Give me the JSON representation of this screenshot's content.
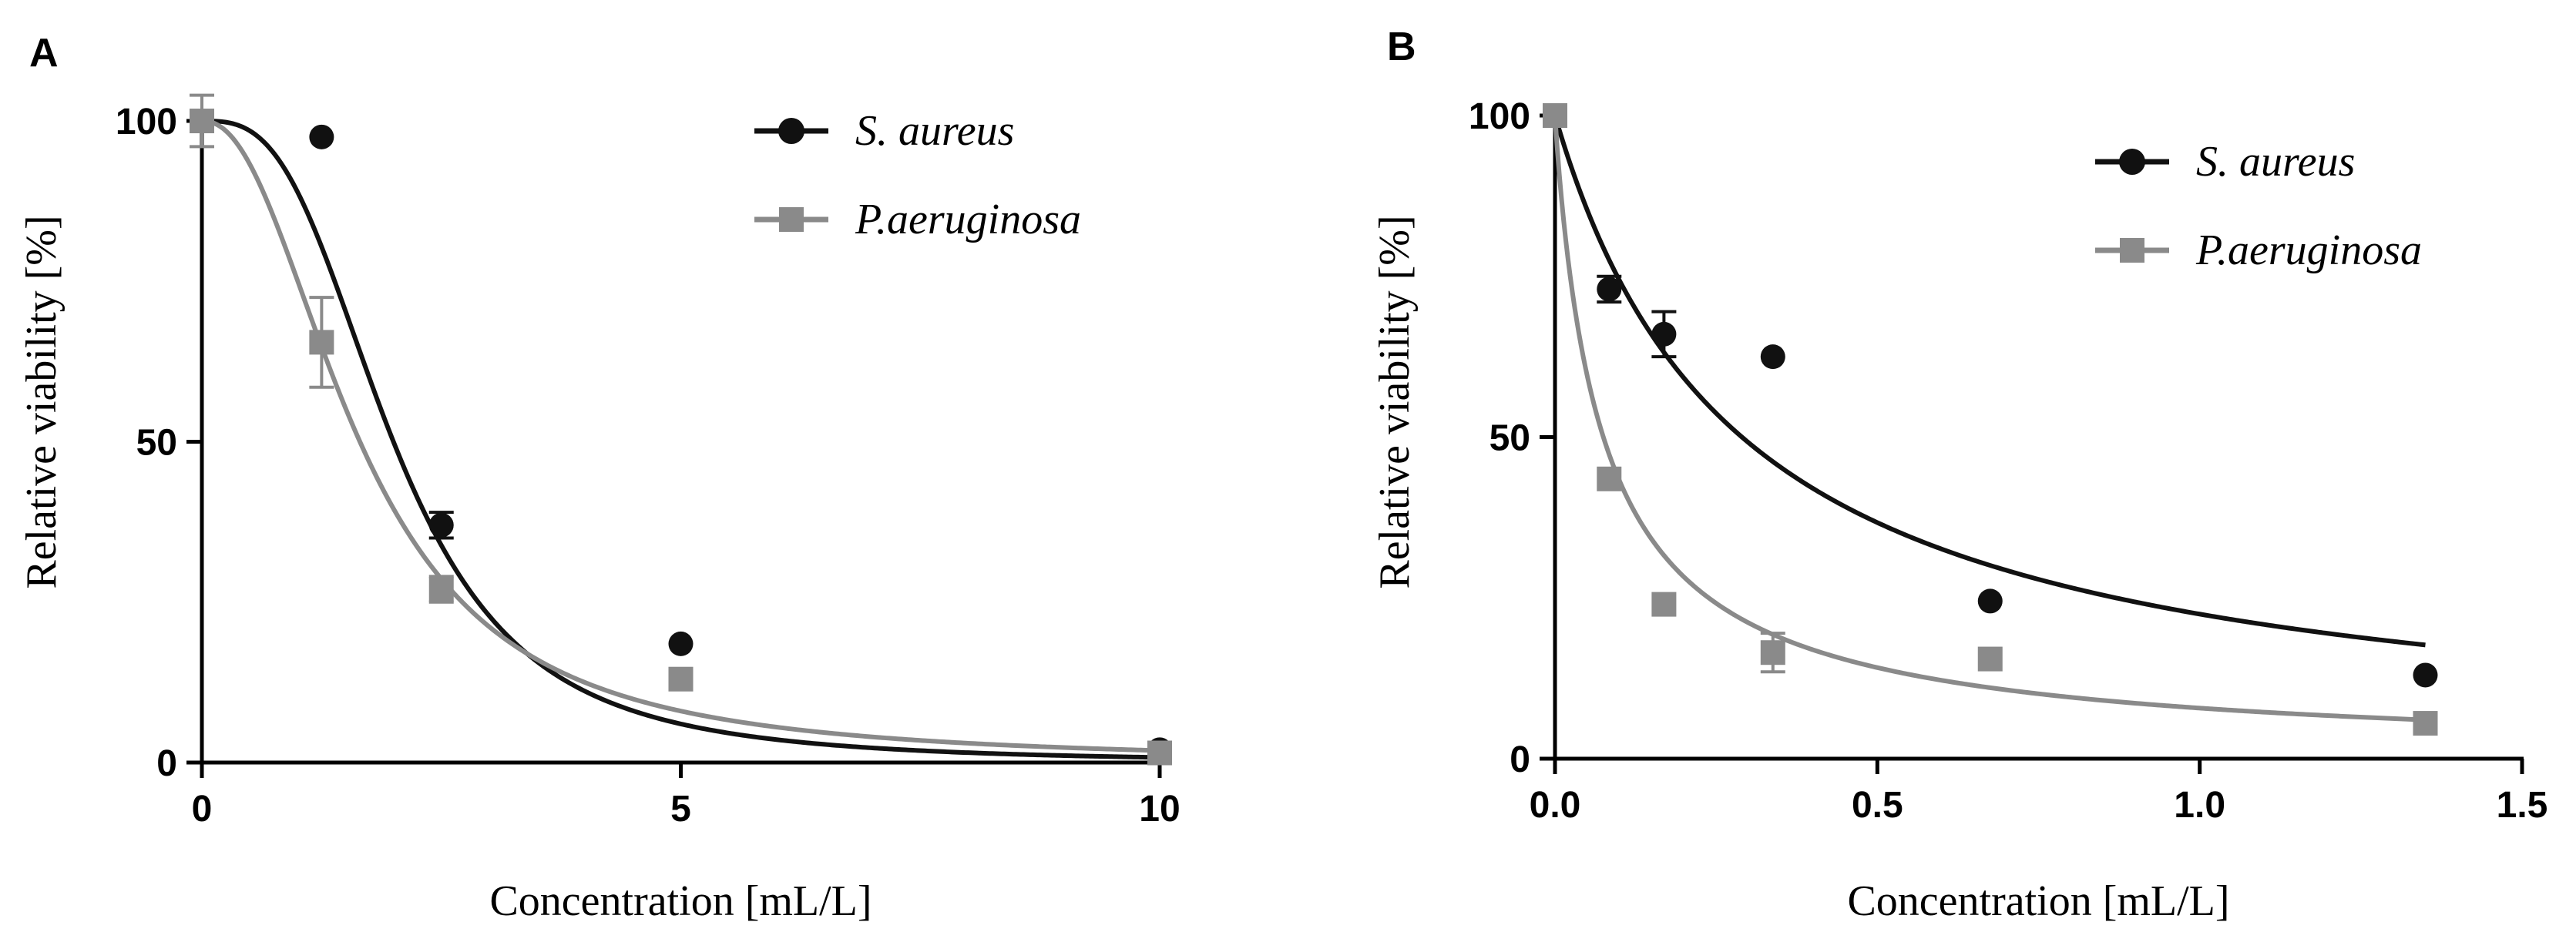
{
  "figure": {
    "panel_a_label": "A",
    "panel_b_label": "B"
  },
  "colors": {
    "s_aureus": "#111111",
    "p_aeruginosa": "#8a8a8a",
    "axis": "#000000"
  },
  "chart_data": [
    {
      "panel": "A",
      "type": "scatter",
      "title": "",
      "xlabel": "Concentration [mL/L]",
      "ylabel": "Relative viability [%]",
      "xlim": [
        0,
        10
      ],
      "ylim": [
        0,
        100
      ],
      "xticks": [
        0,
        5,
        10
      ],
      "xtick_labels": [
        "0",
        "5",
        "10"
      ],
      "yticks": [
        0,
        50,
        100
      ],
      "ytick_labels": [
        "0",
        "50",
        "100"
      ],
      "grid": false,
      "legend_position": "top-right",
      "series": [
        {
          "name": "S. aureus",
          "marker": "circle",
          "color": "#111111",
          "x": [
            0,
            1.25,
            2.5,
            5,
            10
          ],
          "y": [
            100,
            97.5,
            37,
            18.5,
            2
          ],
          "err": [
            0,
            0,
            2,
            0,
            0
          ],
          "fit": {
            "model": "logistic",
            "top": 100,
            "ec50": 2.0,
            "hill": 3.0
          }
        },
        {
          "name": "P.aeruginosa",
          "marker": "square",
          "color": "#8a8a8a",
          "x": [
            0,
            1.25,
            2.5,
            5,
            10
          ],
          "y": [
            100,
            65.5,
            27,
            13,
            1.5
          ],
          "err": [
            4,
            7,
            2,
            0,
            0
          ],
          "fit": {
            "model": "logistic",
            "top": 100,
            "ec50": 1.65,
            "hill": 2.2
          }
        }
      ]
    },
    {
      "panel": "B",
      "type": "scatter",
      "title": "",
      "xlabel": "Concentration [mL/L]",
      "ylabel": "Relative viability [%]",
      "xlim": [
        0,
        1.5
      ],
      "ylim": [
        0,
        100
      ],
      "xticks": [
        0,
        0.5,
        1.0,
        1.5
      ],
      "xtick_labels": [
        "0.0",
        "0.5",
        "1.0",
        "1.5"
      ],
      "yticks": [
        0,
        50,
        100
      ],
      "ytick_labels": [
        "0",
        "50",
        "100"
      ],
      "grid": false,
      "legend_position": "top-right",
      "series": [
        {
          "name": "S. aureus",
          "marker": "circle",
          "color": "#111111",
          "x": [
            0,
            0.084,
            0.169,
            0.338,
            0.675,
            1.35
          ],
          "y": [
            100,
            73,
            66,
            62.5,
            24.5,
            13
          ],
          "err": [
            0,
            2,
            3.5,
            0,
            0,
            0
          ],
          "fit": {
            "model": "logistic",
            "top": 100,
            "ec50": 0.29,
            "hill": 1.0
          }
        },
        {
          "name": "P.aeruginosa",
          "marker": "square",
          "color": "#8a8a8a",
          "x": [
            0,
            0.084,
            0.169,
            0.338,
            0.675,
            1.35
          ],
          "y": [
            100,
            43.5,
            24,
            16.5,
            15.5,
            5.5
          ],
          "err": [
            0,
            0,
            0,
            3,
            0,
            0
          ],
          "fit": {
            "model": "logistic",
            "top": 100,
            "ec50": 0.075,
            "hill": 0.95
          }
        }
      ]
    }
  ]
}
